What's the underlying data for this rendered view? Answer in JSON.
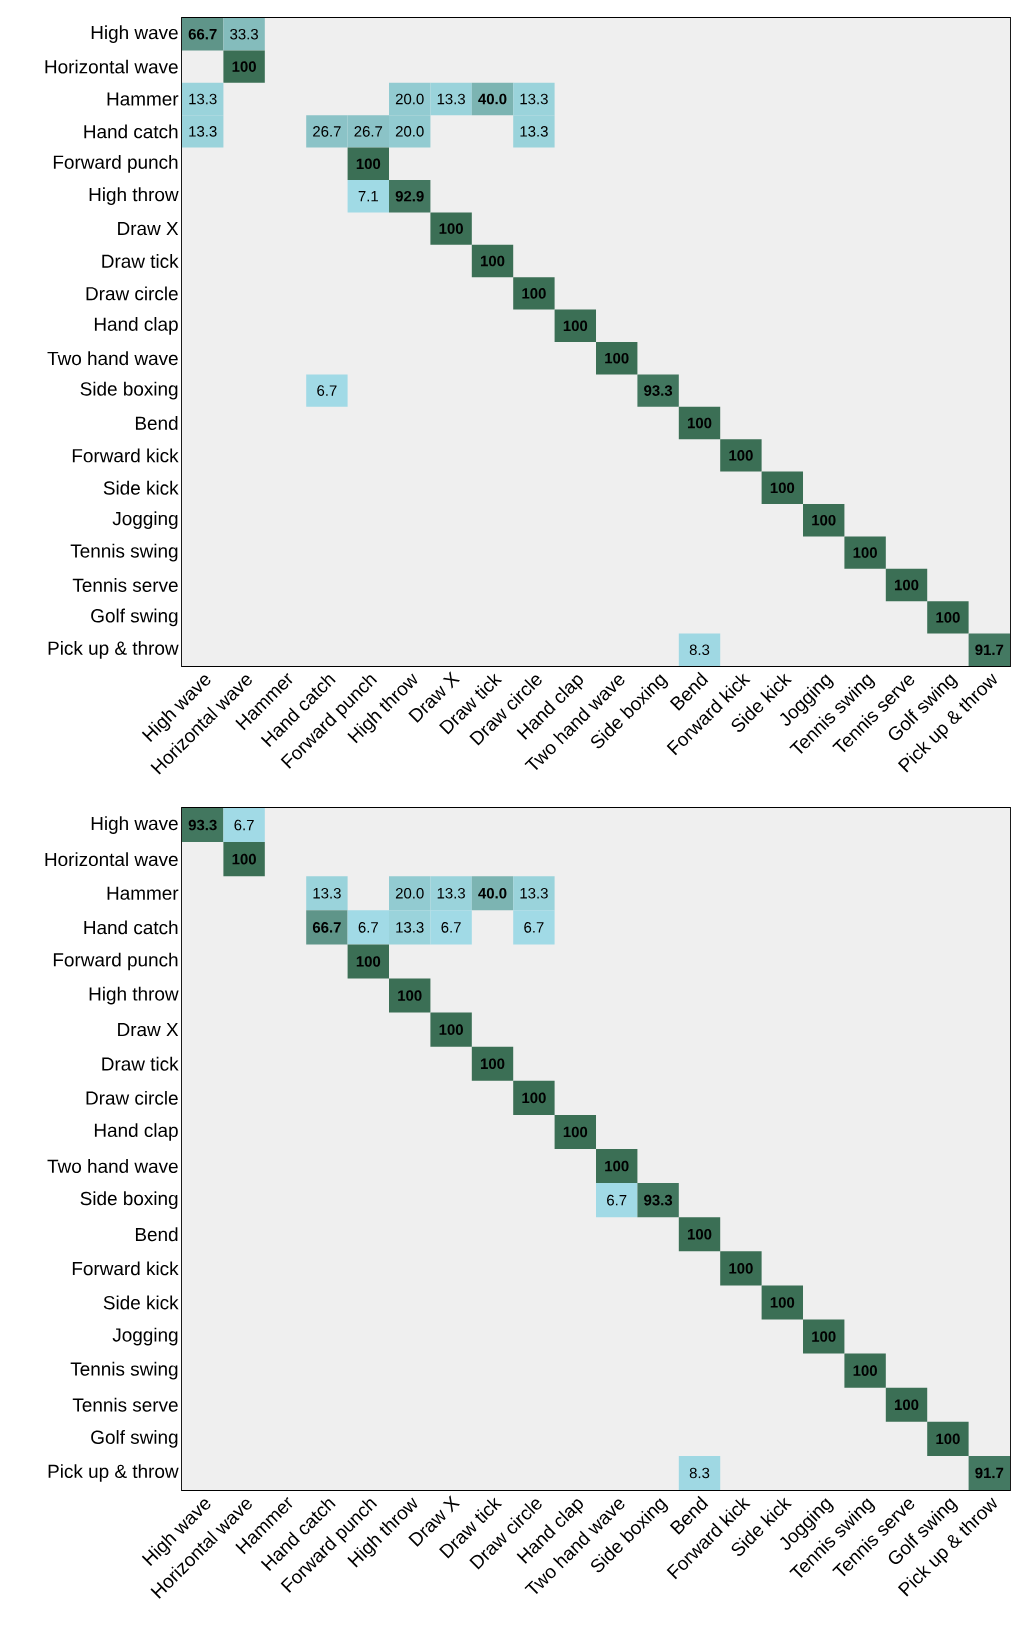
{
  "chart_data": [
    {
      "type": "heatmap",
      "categories": [
        "High wave",
        "Horizontal wave",
        "Hammer",
        "Hand catch",
        "Forward punch",
        "High throw",
        "Draw X",
        "Draw tick",
        "Draw circle",
        "Hand clap",
        "Two hand wave",
        "Side boxing",
        "Bend",
        "Forward kick",
        "Side kick",
        "Jogging",
        "Tennis swing",
        "Tennis serve",
        "Golf swing",
        "Pick up & throw"
      ],
      "y_categories": [
        "High wave",
        "Horizontal wave",
        "Hammer",
        "Hand catch",
        "Forward punch",
        "High throw",
        "Draw X",
        "Draw tick",
        "Draw circle",
        "Hand clap",
        "Two hand wave",
        "Side boxing",
        "Bend",
        "Forward kick",
        "Side kick",
        "Jogging",
        "Tennis swing",
        "Tennis serve",
        "Golf swing",
        "Pick up & throw"
      ],
      "cells": [
        [
          66.7,
          33.3,
          null,
          null,
          null,
          null,
          null,
          null,
          null,
          null,
          null,
          null,
          null,
          null,
          null,
          null,
          null,
          null,
          null,
          null
        ],
        [
          null,
          100,
          null,
          null,
          null,
          null,
          null,
          null,
          null,
          null,
          null,
          null,
          null,
          null,
          null,
          null,
          null,
          null,
          null,
          null
        ],
        [
          13.3,
          null,
          null,
          null,
          null,
          20.0,
          13.3,
          40.0,
          13.3,
          null,
          null,
          null,
          null,
          null,
          null,
          null,
          null,
          null,
          null,
          null
        ],
        [
          13.3,
          null,
          null,
          26.7,
          26.7,
          20.0,
          null,
          null,
          13.3,
          null,
          null,
          null,
          null,
          null,
          null,
          null,
          null,
          null,
          null,
          null
        ],
        [
          null,
          null,
          null,
          null,
          100,
          null,
          null,
          null,
          null,
          null,
          null,
          null,
          null,
          null,
          null,
          null,
          null,
          null,
          null,
          null
        ],
        [
          null,
          null,
          null,
          null,
          7.1,
          92.9,
          null,
          null,
          null,
          null,
          null,
          null,
          null,
          null,
          null,
          null,
          null,
          null,
          null,
          null
        ],
        [
          null,
          null,
          null,
          null,
          null,
          null,
          100,
          null,
          null,
          null,
          null,
          null,
          null,
          null,
          null,
          null,
          null,
          null,
          null,
          null
        ],
        [
          null,
          null,
          null,
          null,
          null,
          null,
          null,
          100,
          null,
          null,
          null,
          null,
          null,
          null,
          null,
          null,
          null,
          null,
          null,
          null
        ],
        [
          null,
          null,
          null,
          null,
          null,
          null,
          null,
          null,
          100,
          null,
          null,
          null,
          null,
          null,
          null,
          null,
          null,
          null,
          null,
          null
        ],
        [
          null,
          null,
          null,
          null,
          null,
          null,
          null,
          null,
          null,
          100,
          null,
          null,
          null,
          null,
          null,
          null,
          null,
          null,
          null,
          null
        ],
        [
          null,
          null,
          null,
          null,
          null,
          null,
          null,
          null,
          null,
          null,
          100,
          null,
          null,
          null,
          null,
          null,
          null,
          null,
          null,
          null
        ],
        [
          null,
          null,
          null,
          6.7,
          null,
          null,
          null,
          null,
          null,
          null,
          null,
          93.3,
          null,
          null,
          null,
          null,
          null,
          null,
          null,
          null
        ],
        [
          null,
          null,
          null,
          null,
          null,
          null,
          null,
          null,
          null,
          null,
          null,
          null,
          100,
          null,
          null,
          null,
          null,
          null,
          null,
          null
        ],
        [
          null,
          null,
          null,
          null,
          null,
          null,
          null,
          null,
          null,
          null,
          null,
          null,
          null,
          100,
          null,
          null,
          null,
          null,
          null,
          null
        ],
        [
          null,
          null,
          null,
          null,
          null,
          null,
          null,
          null,
          null,
          null,
          null,
          null,
          null,
          null,
          100,
          null,
          null,
          null,
          null,
          null
        ],
        [
          null,
          null,
          null,
          null,
          null,
          null,
          null,
          null,
          null,
          null,
          null,
          null,
          null,
          null,
          null,
          100,
          null,
          null,
          null,
          null
        ],
        [
          null,
          null,
          null,
          null,
          null,
          null,
          null,
          null,
          null,
          null,
          null,
          null,
          null,
          null,
          null,
          null,
          100,
          null,
          null,
          null
        ],
        [
          null,
          null,
          null,
          null,
          null,
          null,
          null,
          null,
          null,
          null,
          null,
          null,
          null,
          null,
          null,
          null,
          null,
          100,
          null,
          null
        ],
        [
          null,
          null,
          null,
          null,
          null,
          null,
          null,
          null,
          null,
          null,
          null,
          null,
          null,
          null,
          null,
          null,
          null,
          null,
          100,
          null
        ],
        [
          null,
          null,
          null,
          null,
          null,
          null,
          null,
          null,
          null,
          null,
          null,
          null,
          8.3,
          null,
          null,
          null,
          null,
          null,
          null,
          91.7
        ]
      ],
      "cell_labels": [
        [
          "66.7",
          "33.3",
          null,
          null,
          null,
          null,
          null,
          null,
          null,
          null,
          null,
          null,
          null,
          null,
          null,
          null,
          null,
          null,
          null,
          null
        ],
        [
          null,
          "100",
          null,
          null,
          null,
          null,
          null,
          null,
          null,
          null,
          null,
          null,
          null,
          null,
          null,
          null,
          null,
          null,
          null,
          null
        ],
        [
          "13.3",
          null,
          null,
          null,
          null,
          "20.0",
          "13.3",
          "40.0",
          "13.3",
          null,
          null,
          null,
          null,
          null,
          null,
          null,
          null,
          null,
          null,
          null
        ],
        [
          "13.3",
          null,
          null,
          "26.7",
          "26.7",
          "20.0",
          null,
          null,
          "13.3",
          null,
          null,
          null,
          null,
          null,
          null,
          null,
          null,
          null,
          null,
          null
        ],
        [
          null,
          null,
          null,
          null,
          "100",
          null,
          null,
          null,
          null,
          null,
          null,
          null,
          null,
          null,
          null,
          null,
          null,
          null,
          null,
          null
        ],
        [
          null,
          null,
          null,
          null,
          "7.1",
          "92.9",
          null,
          null,
          null,
          null,
          null,
          null,
          null,
          null,
          null,
          null,
          null,
          null,
          null,
          null
        ],
        [
          null,
          null,
          null,
          null,
          null,
          null,
          "100",
          null,
          null,
          null,
          null,
          null,
          null,
          null,
          null,
          null,
          null,
          null,
          null,
          null
        ],
        [
          null,
          null,
          null,
          null,
          null,
          null,
          null,
          "100",
          null,
          null,
          null,
          null,
          null,
          null,
          null,
          null,
          null,
          null,
          null,
          null
        ],
        [
          null,
          null,
          null,
          null,
          null,
          null,
          null,
          null,
          "100",
          null,
          null,
          null,
          null,
          null,
          null,
          null,
          null,
          null,
          null,
          null
        ],
        [
          null,
          null,
          null,
          null,
          null,
          null,
          null,
          null,
          null,
          "100",
          null,
          null,
          null,
          null,
          null,
          null,
          null,
          null,
          null,
          null
        ],
        [
          null,
          null,
          null,
          null,
          null,
          null,
          null,
          null,
          null,
          null,
          "100",
          null,
          null,
          null,
          null,
          null,
          null,
          null,
          null,
          null
        ],
        [
          null,
          null,
          null,
          "6.7",
          null,
          null,
          null,
          null,
          null,
          null,
          null,
          "93.3",
          null,
          null,
          null,
          null,
          null,
          null,
          null,
          null
        ],
        [
          null,
          null,
          null,
          null,
          null,
          null,
          null,
          null,
          null,
          null,
          null,
          null,
          "100",
          null,
          null,
          null,
          null,
          null,
          null,
          null
        ],
        [
          null,
          null,
          null,
          null,
          null,
          null,
          null,
          null,
          null,
          null,
          null,
          null,
          null,
          "100",
          null,
          null,
          null,
          null,
          null,
          null
        ],
        [
          null,
          null,
          null,
          null,
          null,
          null,
          null,
          null,
          null,
          null,
          null,
          null,
          null,
          null,
          "100",
          null,
          null,
          null,
          null,
          null
        ],
        [
          null,
          null,
          null,
          null,
          null,
          null,
          null,
          null,
          null,
          null,
          null,
          null,
          null,
          null,
          null,
          "100",
          null,
          null,
          null,
          null
        ],
        [
          null,
          null,
          null,
          null,
          null,
          null,
          null,
          null,
          null,
          null,
          null,
          null,
          null,
          null,
          null,
          null,
          "100",
          null,
          null,
          null
        ],
        [
          null,
          null,
          null,
          null,
          null,
          null,
          null,
          null,
          null,
          null,
          null,
          null,
          null,
          null,
          null,
          null,
          null,
          "100",
          null,
          null
        ],
        [
          null,
          null,
          null,
          null,
          null,
          null,
          null,
          null,
          null,
          null,
          null,
          null,
          null,
          null,
          null,
          null,
          null,
          null,
          "100",
          null
        ],
        [
          null,
          null,
          null,
          null,
          null,
          null,
          null,
          null,
          null,
          null,
          null,
          null,
          "8.3",
          null,
          null,
          null,
          null,
          null,
          null,
          "91.7"
        ]
      ]
    },
    {
      "type": "heatmap",
      "categories": [
        "High wave",
        "Horizontal wave",
        "Hammer",
        "Hand catch",
        "Forward punch",
        "High throw",
        "Draw X",
        "Draw tick",
        "Draw circle",
        "Hand clap",
        "Two hand wave",
        "Side boxing",
        "Bend",
        "Forward kick",
        "Side kick",
        "Jogging",
        "Tennis swing",
        "Tennis serve",
        "Golf swing",
        "Pick up & throw"
      ],
      "y_categories": [
        "High wave",
        "Horizontal wave",
        "Hammer",
        "Hand catch",
        "Forward punch",
        "High throw",
        "Draw X",
        "Draw tick",
        "Draw circle",
        "Hand clap",
        "Two hand wave",
        "Side boxing",
        "Bend",
        "Forward kick",
        "Side kick",
        "Jogging",
        "Tennis swing",
        "Tennis serve",
        "Golf swing",
        "Pick up & throw"
      ],
      "cells": [
        [
          93.3,
          6.7,
          null,
          null,
          null,
          null,
          null,
          null,
          null,
          null,
          null,
          null,
          null,
          null,
          null,
          null,
          null,
          null,
          null,
          null
        ],
        [
          null,
          100,
          null,
          null,
          null,
          null,
          null,
          null,
          null,
          null,
          null,
          null,
          null,
          null,
          null,
          null,
          null,
          null,
          null,
          null
        ],
        [
          null,
          null,
          null,
          13.3,
          null,
          20.0,
          13.3,
          40.0,
          13.3,
          null,
          null,
          null,
          null,
          null,
          null,
          null,
          null,
          null,
          null,
          null
        ],
        [
          null,
          null,
          null,
          66.7,
          6.7,
          13.3,
          6.7,
          null,
          6.7,
          null,
          null,
          null,
          null,
          null,
          null,
          null,
          null,
          null,
          null,
          null
        ],
        [
          null,
          null,
          null,
          null,
          100,
          null,
          null,
          null,
          null,
          null,
          null,
          null,
          null,
          null,
          null,
          null,
          null,
          null,
          null,
          null
        ],
        [
          null,
          null,
          null,
          null,
          null,
          100,
          null,
          null,
          null,
          null,
          null,
          null,
          null,
          null,
          null,
          null,
          null,
          null,
          null,
          null
        ],
        [
          null,
          null,
          null,
          null,
          null,
          null,
          100,
          null,
          null,
          null,
          null,
          null,
          null,
          null,
          null,
          null,
          null,
          null,
          null,
          null
        ],
        [
          null,
          null,
          null,
          null,
          null,
          null,
          null,
          100,
          null,
          null,
          null,
          null,
          null,
          null,
          null,
          null,
          null,
          null,
          null,
          null
        ],
        [
          null,
          null,
          null,
          null,
          null,
          null,
          null,
          null,
          100,
          null,
          null,
          null,
          null,
          null,
          null,
          null,
          null,
          null,
          null,
          null
        ],
        [
          null,
          null,
          null,
          null,
          null,
          null,
          null,
          null,
          null,
          100,
          null,
          null,
          null,
          null,
          null,
          null,
          null,
          null,
          null,
          null
        ],
        [
          null,
          null,
          null,
          null,
          null,
          null,
          null,
          null,
          null,
          null,
          100,
          null,
          null,
          null,
          null,
          null,
          null,
          null,
          null,
          null
        ],
        [
          null,
          null,
          null,
          null,
          null,
          null,
          null,
          null,
          null,
          null,
          6.7,
          93.3,
          null,
          null,
          null,
          null,
          null,
          null,
          null,
          null
        ],
        [
          null,
          null,
          null,
          null,
          null,
          null,
          null,
          null,
          null,
          null,
          null,
          null,
          100,
          null,
          null,
          null,
          null,
          null,
          null,
          null
        ],
        [
          null,
          null,
          null,
          null,
          null,
          null,
          null,
          null,
          null,
          null,
          null,
          null,
          null,
          100,
          null,
          null,
          null,
          null,
          null,
          null
        ],
        [
          null,
          null,
          null,
          null,
          null,
          null,
          null,
          null,
          null,
          null,
          null,
          null,
          null,
          null,
          100,
          null,
          null,
          null,
          null,
          null
        ],
        [
          null,
          null,
          null,
          null,
          null,
          null,
          null,
          null,
          null,
          null,
          null,
          null,
          null,
          null,
          null,
          100,
          null,
          null,
          null,
          null
        ],
        [
          null,
          null,
          null,
          null,
          null,
          null,
          null,
          null,
          null,
          null,
          null,
          null,
          null,
          null,
          null,
          null,
          100,
          null,
          null,
          null
        ],
        [
          null,
          null,
          null,
          null,
          null,
          null,
          null,
          null,
          null,
          null,
          null,
          null,
          null,
          null,
          null,
          null,
          null,
          100,
          null,
          null
        ],
        [
          null,
          null,
          null,
          null,
          null,
          null,
          null,
          null,
          null,
          null,
          null,
          null,
          null,
          null,
          null,
          null,
          null,
          null,
          100,
          null
        ],
        [
          null,
          null,
          null,
          null,
          null,
          null,
          null,
          null,
          null,
          null,
          null,
          null,
          8.3,
          null,
          null,
          null,
          null,
          null,
          null,
          91.7
        ]
      ],
      "cell_labels": [
        [
          "93.3",
          "6.7",
          null,
          null,
          null,
          null,
          null,
          null,
          null,
          null,
          null,
          null,
          null,
          null,
          null,
          null,
          null,
          null,
          null,
          null
        ],
        [
          null,
          "100",
          null,
          null,
          null,
          null,
          null,
          null,
          null,
          null,
          null,
          null,
          null,
          null,
          null,
          null,
          null,
          null,
          null,
          null
        ],
        [
          null,
          null,
          null,
          "13.3",
          null,
          "20.0",
          "13.3",
          "40.0",
          "13.3",
          null,
          null,
          null,
          null,
          null,
          null,
          null,
          null,
          null,
          null,
          null
        ],
        [
          null,
          null,
          null,
          "66.7",
          "6.7",
          "13.3",
          "6.7",
          null,
          "6.7",
          null,
          null,
          null,
          null,
          null,
          null,
          null,
          null,
          null,
          null,
          null
        ],
        [
          null,
          null,
          null,
          null,
          "100",
          null,
          null,
          null,
          null,
          null,
          null,
          null,
          null,
          null,
          null,
          null,
          null,
          null,
          null,
          null
        ],
        [
          null,
          null,
          null,
          null,
          null,
          "100",
          null,
          null,
          null,
          null,
          null,
          null,
          null,
          null,
          null,
          null,
          null,
          null,
          null,
          null
        ],
        [
          null,
          null,
          null,
          null,
          null,
          null,
          "100",
          null,
          null,
          null,
          null,
          null,
          null,
          null,
          null,
          null,
          null,
          null,
          null,
          null
        ],
        [
          null,
          null,
          null,
          null,
          null,
          null,
          null,
          "100",
          null,
          null,
          null,
          null,
          null,
          null,
          null,
          null,
          null,
          null,
          null,
          null
        ],
        [
          null,
          null,
          null,
          null,
          null,
          null,
          null,
          null,
          "100",
          null,
          null,
          null,
          null,
          null,
          null,
          null,
          null,
          null,
          null,
          null
        ],
        [
          null,
          null,
          null,
          null,
          null,
          null,
          null,
          null,
          null,
          "100",
          null,
          null,
          null,
          null,
          null,
          null,
          null,
          null,
          null,
          null
        ],
        [
          null,
          null,
          null,
          null,
          null,
          null,
          null,
          null,
          null,
          null,
          "100",
          null,
          null,
          null,
          null,
          null,
          null,
          null,
          null,
          null
        ],
        [
          null,
          null,
          null,
          null,
          null,
          null,
          null,
          null,
          null,
          null,
          "6.7",
          "93.3",
          null,
          null,
          null,
          null,
          null,
          null,
          null,
          null
        ],
        [
          null,
          null,
          null,
          null,
          null,
          null,
          null,
          null,
          null,
          null,
          null,
          null,
          "100",
          null,
          null,
          null,
          null,
          null,
          null,
          null
        ],
        [
          null,
          null,
          null,
          null,
          null,
          null,
          null,
          null,
          null,
          null,
          null,
          null,
          null,
          "100",
          null,
          null,
          null,
          null,
          null,
          null
        ],
        [
          null,
          null,
          null,
          null,
          null,
          null,
          null,
          null,
          null,
          null,
          null,
          null,
          null,
          null,
          "100",
          null,
          null,
          null,
          null,
          null
        ],
        [
          null,
          null,
          null,
          null,
          null,
          null,
          null,
          null,
          null,
          null,
          null,
          null,
          null,
          null,
          null,
          "100",
          null,
          null,
          null,
          null
        ],
        [
          null,
          null,
          null,
          null,
          null,
          null,
          null,
          null,
          null,
          null,
          null,
          null,
          null,
          null,
          null,
          null,
          "100",
          null,
          null,
          null
        ],
        [
          null,
          null,
          null,
          null,
          null,
          null,
          null,
          null,
          null,
          null,
          null,
          null,
          null,
          null,
          null,
          null,
          null,
          "100",
          null,
          null
        ],
        [
          null,
          null,
          null,
          null,
          null,
          null,
          null,
          null,
          null,
          null,
          null,
          null,
          null,
          null,
          null,
          null,
          null,
          null,
          "100",
          null
        ],
        [
          null,
          null,
          null,
          null,
          null,
          null,
          null,
          null,
          null,
          null,
          null,
          null,
          "8.3",
          null,
          null,
          null,
          null,
          null,
          null,
          "91.7"
        ]
      ]
    }
  ]
}
